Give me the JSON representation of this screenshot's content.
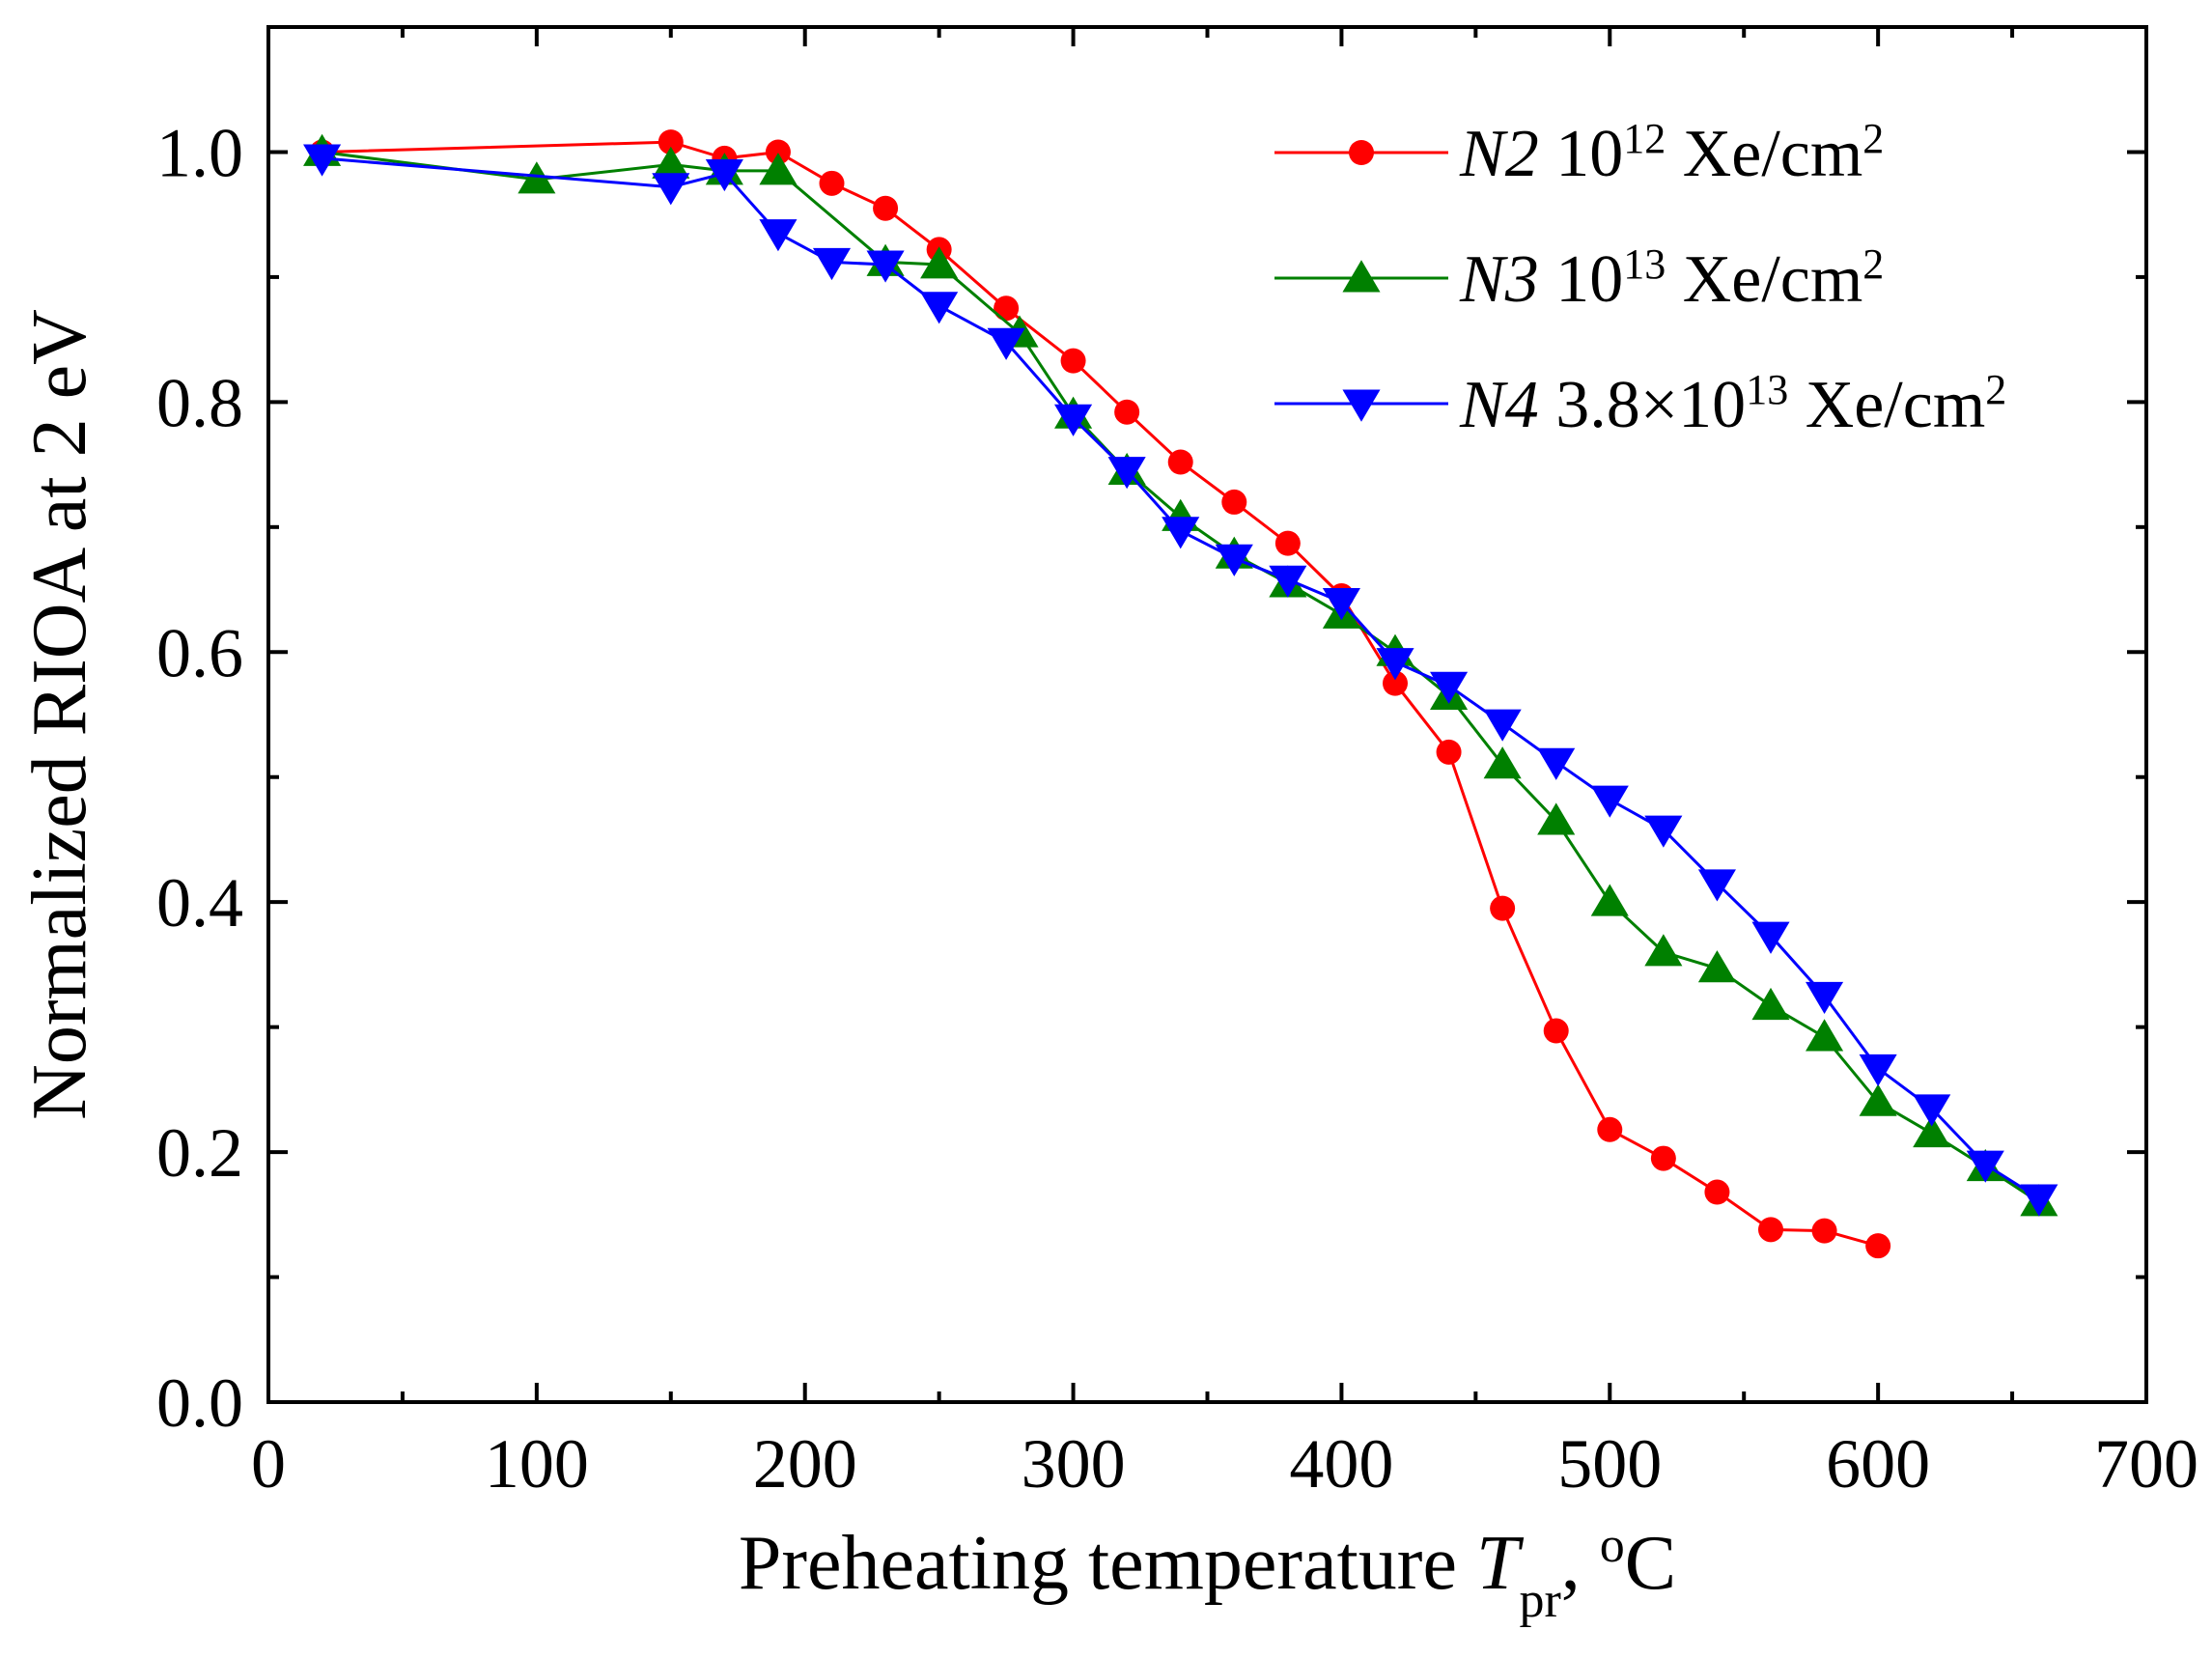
{
  "chart_data": {
    "type": "line",
    "title": "",
    "xlabel": {
      "main": "Preheating temperature ",
      "var": "T",
      "sub": "pr",
      "sep": ", ",
      "deg": "o",
      "unit": "C"
    },
    "ylabel": "Normalized  RIOA  at  2 eV",
    "xlim": [
      0,
      700
    ],
    "ylim": [
      0,
      1.1
    ],
    "xticks": [
      "0",
      "100",
      "200",
      "300",
      "400",
      "500",
      "600",
      "700"
    ],
    "yticks": [
      "0.0",
      "0.2",
      "0.4",
      "0.6",
      "0.8",
      "1.0"
    ],
    "grid": false,
    "legend_position": "top-right",
    "series": [
      {
        "name": "N2 10^12 Xe/cm^2",
        "label": {
          "italic": "N2",
          "text": " 10",
          "sup": "12",
          "unit": " Xe/cm",
          "unit_sup": "2"
        },
        "color": "#ff0000",
        "marker": "circle",
        "x": [
          20,
          150,
          170,
          190,
          210,
          230,
          250,
          275,
          300,
          320,
          340,
          360,
          380,
          400,
          420,
          440,
          460,
          480,
          500,
          520,
          540,
          560,
          580,
          600
        ],
        "y": [
          1.0,
          1.008,
          0.995,
          1.0,
          0.975,
          0.955,
          0.922,
          0.875,
          0.833,
          0.792,
          0.752,
          0.72,
          0.687,
          0.645,
          0.575,
          0.52,
          0.395,
          0.297,
          0.218,
          0.195,
          0.168,
          0.138,
          0.137,
          0.125
        ]
      },
      {
        "name": "N3 10^13 Xe/cm^2",
        "label": {
          "italic": "N3",
          "text": " 10",
          "sup": "13",
          "unit": " Xe/cm",
          "unit_sup": "2"
        },
        "color": "#008000",
        "marker": "triangle-up",
        "x": [
          20,
          100,
          150,
          170,
          190,
          230,
          250,
          280,
          300,
          320,
          340,
          360,
          380,
          400,
          420,
          440,
          460,
          480,
          500,
          520,
          540,
          560,
          580,
          600,
          620,
          640,
          660
        ],
        "y": [
          1.0,
          0.978,
          0.99,
          0.985,
          0.985,
          0.912,
          0.91,
          0.855,
          0.79,
          0.745,
          0.708,
          0.678,
          0.655,
          0.63,
          0.6,
          0.565,
          0.51,
          0.465,
          0.4,
          0.36,
          0.347,
          0.317,
          0.292,
          0.24,
          0.215,
          0.188,
          0.16
        ]
      },
      {
        "name": "N4 3.8×10^13 Xe/cm^2",
        "label": {
          "italic": "N4",
          "text": " 3.8×10",
          "sup": "13",
          "unit": "  Xe/cm",
          "unit_sup": "2"
        },
        "color": "#0000ff",
        "marker": "triangle-down",
        "x": [
          20,
          150,
          170,
          190,
          210,
          230,
          250,
          275,
          300,
          320,
          340,
          360,
          380,
          400,
          420,
          440,
          460,
          480,
          500,
          520,
          540,
          560,
          580,
          600,
          620,
          640,
          660
        ],
        "y": [
          0.995,
          0.972,
          0.983,
          0.935,
          0.912,
          0.91,
          0.877,
          0.848,
          0.787,
          0.745,
          0.697,
          0.675,
          0.658,
          0.64,
          0.592,
          0.573,
          0.543,
          0.512,
          0.482,
          0.458,
          0.415,
          0.373,
          0.325,
          0.267,
          0.235,
          0.19,
          0.163
        ]
      }
    ]
  }
}
